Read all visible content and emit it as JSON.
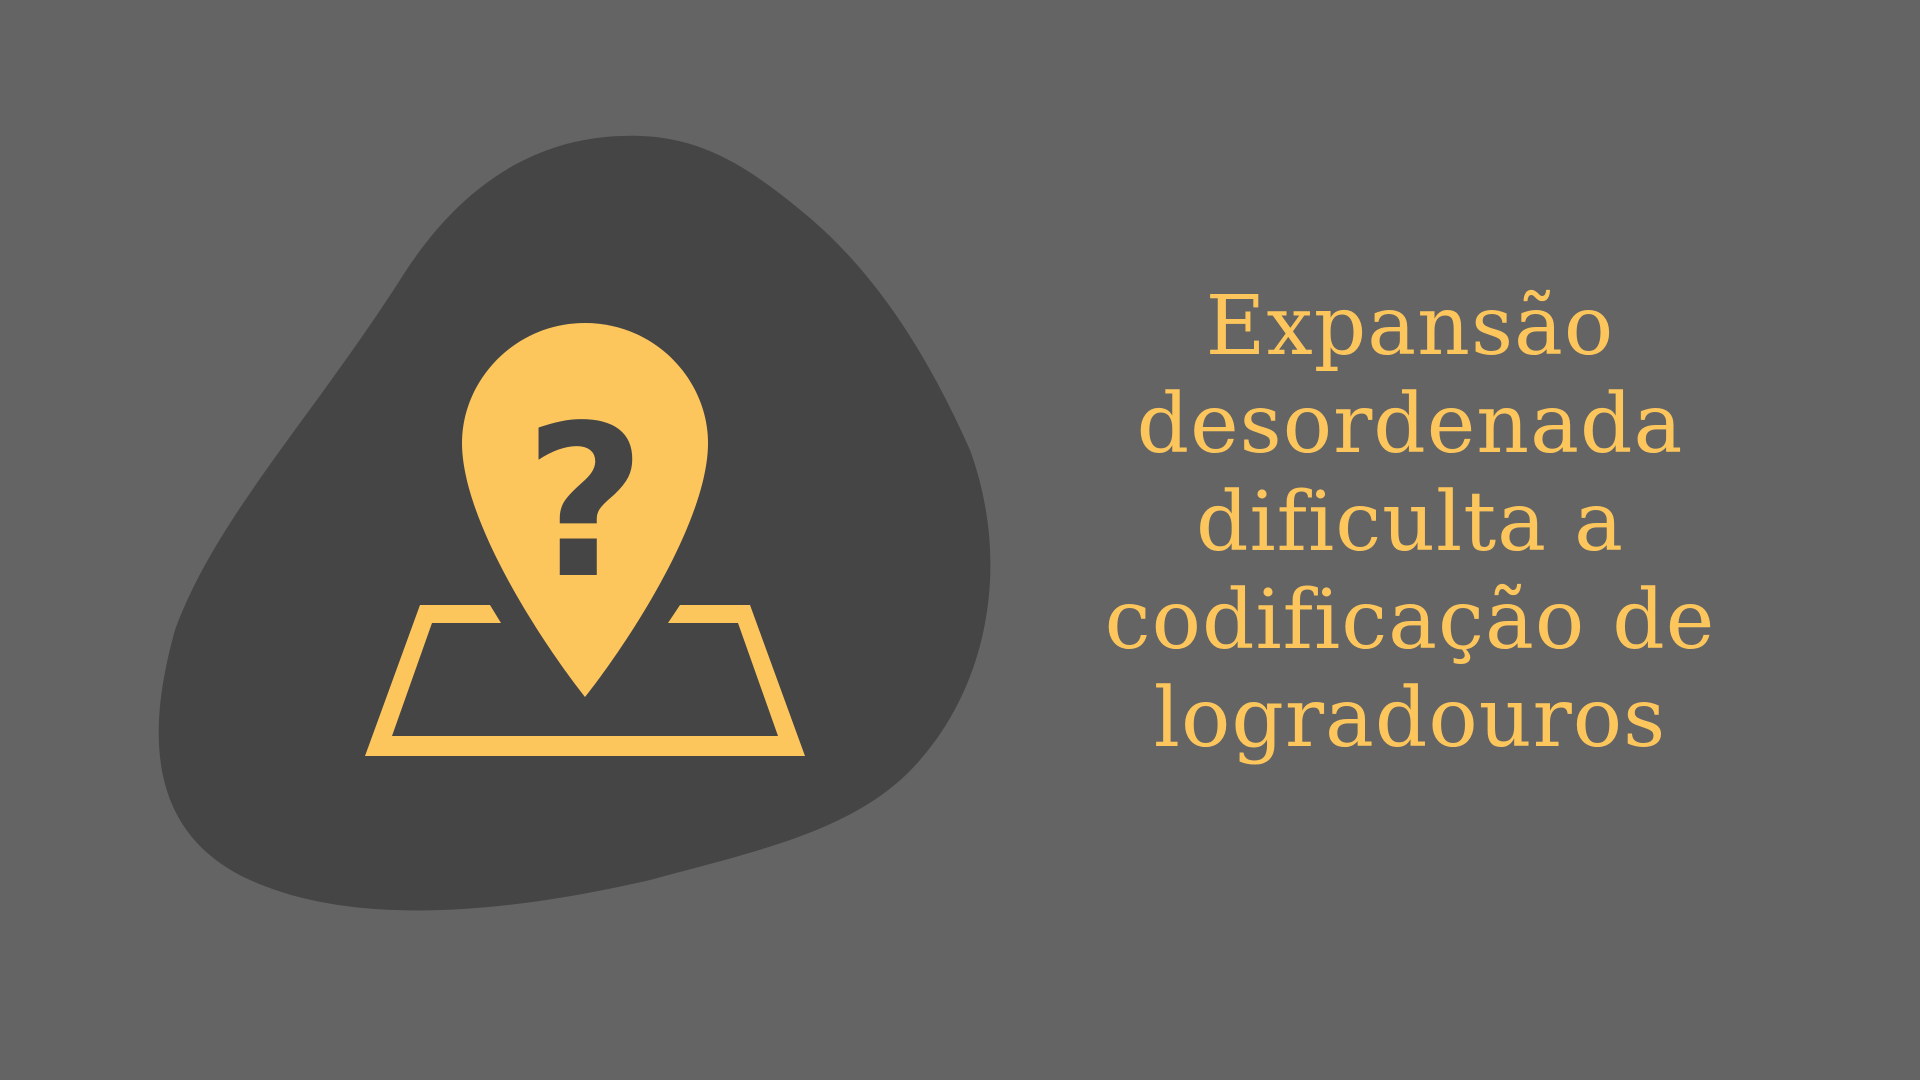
{
  "colors": {
    "background": "#646464",
    "blob": "#454545",
    "accent": "#FDC65D"
  },
  "illustration": {
    "icon": "map-pin-question-icon",
    "question_mark": "?"
  },
  "headline": {
    "lines": [
      "Expansão",
      "desordenada",
      "dificulta a",
      "codificação de",
      "logradouros"
    ]
  }
}
